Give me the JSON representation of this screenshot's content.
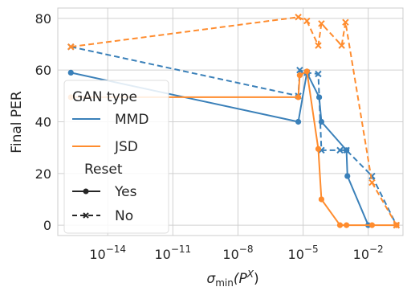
{
  "chart_data": {
    "type": "line",
    "title": "",
    "xlabel_main": "σ",
    "xlabel_sub": "min",
    "xlabel_tail": "(P",
    "xlabel_sup": "X",
    "xlabel_close": ")",
    "ylabel": "Final PER",
    "x_scale": "log",
    "xlim": [
      5e-17,
      0.4
    ],
    "ylim": [
      -4,
      84
    ],
    "x_ticks": [
      {
        "value": 1e-14,
        "base": "10",
        "exp": "−14"
      },
      {
        "value": 1e-11,
        "base": "10",
        "exp": "−11"
      },
      {
        "value": 1e-08,
        "base": "10",
        "exp": "−8"
      },
      {
        "value": 1e-05,
        "base": "10",
        "exp": "−5"
      },
      {
        "value": 0.01,
        "base": "10",
        "exp": "−2"
      }
    ],
    "y_ticks": [
      0,
      20,
      40,
      60,
      80
    ],
    "grid": true,
    "legend_placement": "center-left",
    "legend": {
      "title1": "GAN type",
      "entries_type": [
        {
          "label": "MMD",
          "color": "#3a80b9"
        },
        {
          "label": "JSD",
          "color": "#ff8c2e"
        }
      ],
      "title2": "Reset",
      "entries_reset": [
        {
          "label": "Yes",
          "style": "solid",
          "marker": "circle"
        },
        {
          "label": "No",
          "style": "dashed",
          "marker": "x"
        }
      ]
    },
    "series": [
      {
        "name": "MMD",
        "reset": "Yes",
        "color": "#3a80b9",
        "dash": false,
        "marker": "circle",
        "points": [
          [
            2e-16,
            59
          ],
          [
            6e-06,
            40
          ],
          [
            1.5e-05,
            59
          ],
          [
            5.5e-05,
            49.5
          ],
          [
            7e-05,
            40
          ],
          [
            0.001,
            29
          ],
          [
            0.0011,
            19
          ],
          [
            0.01,
            0
          ]
        ]
      },
      {
        "name": "MMD",
        "reset": "No",
        "color": "#3a80b9",
        "dash": true,
        "marker": "x",
        "points": [
          [
            2e-16,
            69
          ],
          [
            6e-06,
            50
          ],
          [
            7e-06,
            60
          ],
          [
            1.5e-05,
            59
          ],
          [
            5e-05,
            58.5
          ],
          [
            7e-05,
            29
          ],
          [
            0.0005,
            29
          ],
          [
            0.001,
            29
          ],
          [
            0.015,
            19
          ],
          [
            0.2,
            0
          ]
        ]
      },
      {
        "name": "JSD",
        "reset": "Yes",
        "color": "#ff8c2e",
        "dash": false,
        "marker": "circle",
        "points": [
          [
            2e-16,
            49.5
          ],
          [
            6e-06,
            49.5
          ],
          [
            7e-06,
            58
          ],
          [
            1.5e-05,
            59.5
          ],
          [
            5e-05,
            29.5
          ],
          [
            7e-05,
            10
          ],
          [
            0.0005,
            0
          ],
          [
            0.001,
            0
          ],
          [
            0.015,
            0
          ],
          [
            0.2,
            0
          ]
        ]
      },
      {
        "name": "JSD",
        "reset": "No",
        "color": "#ff8c2e",
        "dash": true,
        "marker": "x",
        "points": [
          [
            2e-16,
            69
          ],
          [
            6e-06,
            80.5
          ],
          [
            1.5e-05,
            79
          ],
          [
            5e-05,
            69.5
          ],
          [
            7e-05,
            78
          ],
          [
            0.0006,
            69.5
          ],
          [
            0.0009,
            78.5
          ],
          [
            0.015,
            16.5
          ],
          [
            0.2,
            0
          ]
        ]
      }
    ]
  }
}
